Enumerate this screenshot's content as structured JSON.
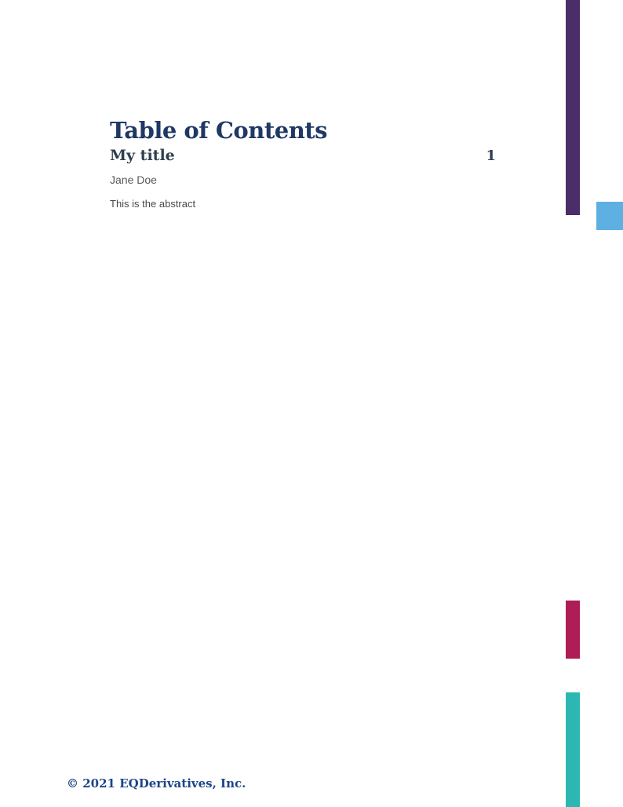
{
  "page": {
    "title": "Table of Contents",
    "footer_text": "© 2021 EQDerivatives, Inc."
  },
  "toc": {
    "entries": [
      {
        "title": "My title",
        "page_number": "1",
        "author": "Jane Doe",
        "abstract": "This is the abstract"
      }
    ]
  },
  "colors": {
    "heading_navy": "#1f3864",
    "entry_slate": "#2f3e4e",
    "footer_blue": "#1c4587",
    "accent_purple": "#4b2d69",
    "accent_blue": "#5fb0e2",
    "accent_crimson": "#ae1d55",
    "accent_teal": "#2db7b3"
  }
}
